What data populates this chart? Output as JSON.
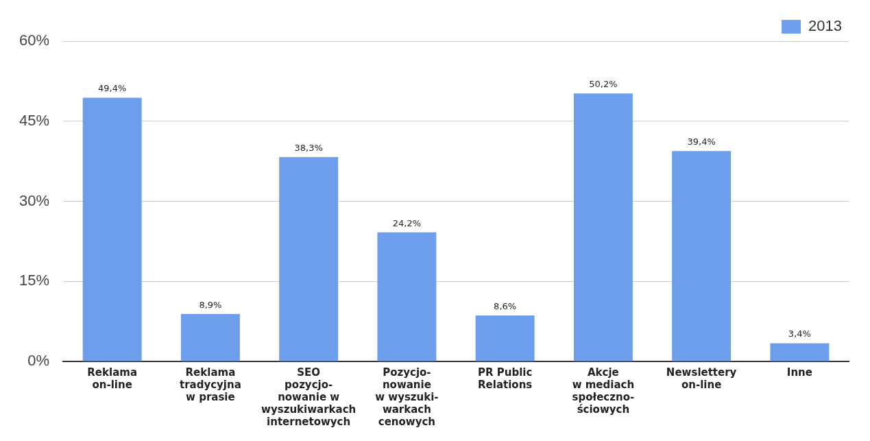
{
  "chart_data": {
    "type": "bar",
    "categories": [
      "Reklama\non-line",
      "Reklama\ntradycyjna\nw prasie",
      "SEO\npozycjo-\nnowanie w\nwyszukiwarkach\ninternetowych",
      "Pozycjo-\nnowanie\nw wyszuki-\nwarkach\ncenowych",
      "PR Public\nRelations",
      "Akcje\nw mediach\nspołeczno-\nściowych",
      "Newslettery\non-line",
      "Inne"
    ],
    "series": [
      {
        "name": "2013",
        "color": "#6d9eeb",
        "values": [
          49.4,
          8.9,
          38.3,
          24.2,
          8.6,
          50.2,
          39.4,
          3.4
        ],
        "value_labels": [
          "49,4%",
          "8,9%",
          "38,3%",
          "24,2%",
          "8,6%",
          "50,2%",
          "39,4%",
          "3,4%"
        ]
      }
    ],
    "ylim": [
      0,
      60
    ],
    "yticks": [
      {
        "value": 0,
        "label": "0%"
      },
      {
        "value": 15,
        "label": "15%"
      },
      {
        "value": 30,
        "label": "30%"
      },
      {
        "value": 45,
        "label": "45%"
      },
      {
        "value": 60,
        "label": "60%"
      }
    ],
    "grid": "y",
    "legend": "top right"
  }
}
